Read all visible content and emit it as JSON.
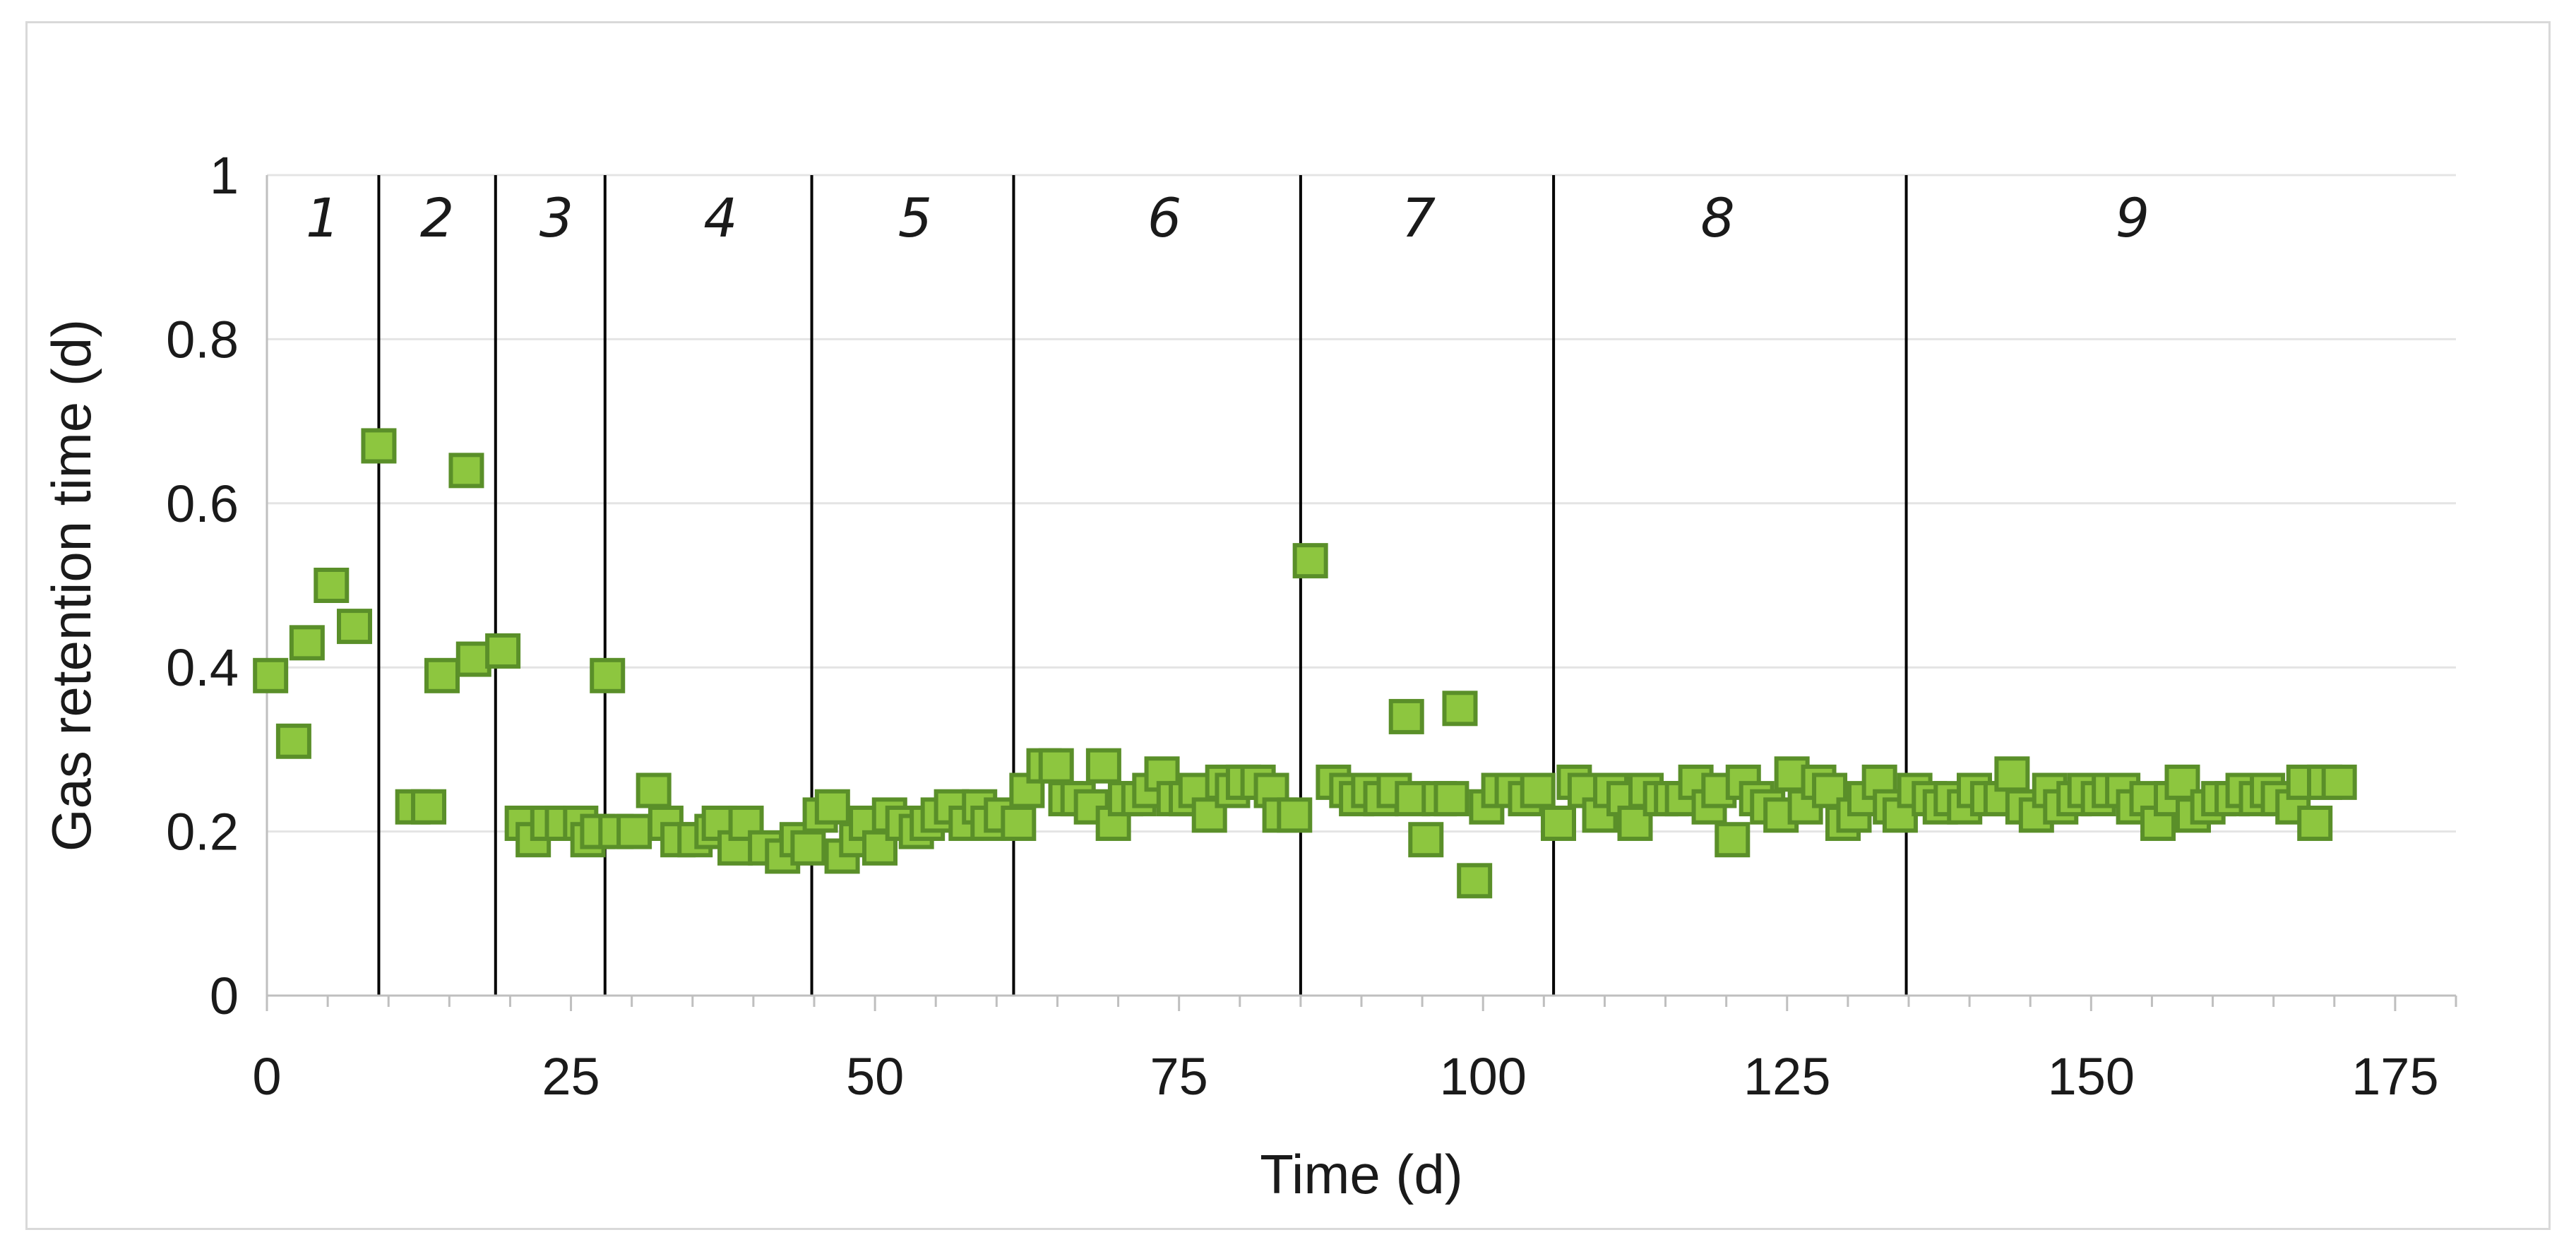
{
  "chart_data": {
    "type": "scatter",
    "title": "",
    "xlabel": "Time (d)",
    "ylabel": "Gas retention time (d)",
    "xlim": [
      0,
      180
    ],
    "ylim": [
      0,
      1
    ],
    "x_ticks": [
      "0",
      "25",
      "50",
      "75",
      "100",
      "125",
      "150",
      "175"
    ],
    "y_ticks": [
      "0",
      "0.2",
      "0.4",
      "0.6",
      "0.8",
      "1"
    ],
    "grid": "horizontal",
    "legend": "none",
    "marker": "square",
    "colors": {
      "marker_fill": "#8dc63f",
      "marker_edge": "#5a8f29",
      "grid": "#e4e4e4",
      "axis": "#bfbfbf",
      "divider": "#000000"
    },
    "phase_boundaries": [
      9.2,
      18.8,
      27.8,
      44.8,
      61.4,
      85.0,
      105.8,
      134.8
    ],
    "phases": [
      {
        "label": "1",
        "x": 4.6
      },
      {
        "label": "2",
        "x": 14.0
      },
      {
        "label": "3",
        "x": 23.8
      },
      {
        "label": "4",
        "x": 37.3
      },
      {
        "label": "5",
        "x": 53.3
      },
      {
        "label": "6",
        "x": 73.8
      },
      {
        "label": "7",
        "x": 94.7
      },
      {
        "label": "8",
        "x": 119.3
      },
      {
        "label": "9",
        "x": 153.4
      }
    ],
    "series": [
      {
        "x": [
          0.3,
          2.2,
          3.3,
          5.3,
          7.2,
          9.2,
          12.0,
          13.3,
          14.4,
          16.4,
          17.0,
          19.4,
          21.0,
          21.9,
          23.1,
          24.3,
          25.8,
          26.4,
          27.2,
          28.0,
          28.7,
          30.2,
          31.8,
          32.8,
          33.8,
          35.2,
          36.6,
          37.2,
          38.5,
          39.4,
          41.0,
          42.4,
          43.6,
          44.5,
          45.5,
          46.5,
          47.3,
          48.5,
          49.3,
          50.4,
          51.2,
          52.3,
          53.4,
          54.3,
          55.2,
          56.3,
          57.5,
          58.6,
          59.3,
          60.4,
          61.8,
          62.5,
          63.9,
          64.9,
          65.7,
          66.7,
          67.8,
          68.8,
          69.6,
          70.6,
          71.7,
          72.6,
          73.6,
          74.6,
          75.6,
          76.4,
          77.5,
          78.6,
          79.4,
          80.3,
          81.5,
          82.6,
          83.3,
          84.5,
          85.8,
          87.7,
          88.8,
          89.6,
          90.6,
          91.6,
          92.7,
          93.7,
          94.2,
          95.3,
          96.4,
          97.4,
          98.1,
          99.3,
          100.3,
          101.3,
          102.4,
          103.5,
          104.5,
          106.2,
          107.5,
          108.4,
          109.6,
          110.5,
          111.6,
          112.5,
          113.4,
          114.6,
          115.5,
          116.4,
          117.5,
          118.6,
          119.4,
          120.5,
          121.4,
          122.5,
          123.4,
          124.5,
          125.4,
          126.5,
          127.6,
          128.5,
          129.6,
          130.5,
          131.4,
          132.6,
          133.5,
          134.3,
          135.5,
          136.7,
          137.6,
          138.5,
          139.6,
          140.4,
          141.5,
          142.6,
          143.5,
          144.4,
          145.5,
          146.6,
          147.5,
          148.6,
          149.5,
          150.6,
          151.5,
          152.6,
          153.5,
          154.6,
          155.5,
          156.6,
          157.5,
          158.4,
          159.6,
          160.5,
          161.6,
          162.5,
          163.6,
          164.5,
          165.4,
          166.6,
          167.5,
          168.4,
          169.2,
          170.4
        ],
        "y": [
          0.39,
          0.31,
          0.43,
          0.5,
          0.45,
          0.67,
          0.23,
          0.23,
          0.39,
          0.64,
          0.41,
          0.42,
          0.21,
          0.19,
          0.21,
          0.21,
          0.21,
          0.19,
          0.2,
          0.39,
          0.2,
          0.2,
          0.25,
          0.21,
          0.19,
          0.19,
          0.2,
          0.21,
          0.18,
          0.21,
          0.18,
          0.17,
          0.19,
          0.18,
          0.22,
          0.23,
          0.17,
          0.19,
          0.21,
          0.18,
          0.22,
          0.21,
          0.2,
          0.21,
          0.22,
          0.23,
          0.21,
          0.23,
          0.21,
          0.22,
          0.21,
          0.25,
          0.28,
          0.28,
          0.24,
          0.24,
          0.23,
          0.28,
          0.21,
          0.24,
          0.24,
          0.25,
          0.27,
          0.24,
          0.24,
          0.25,
          0.22,
          0.26,
          0.25,
          0.26,
          0.26,
          0.25,
          0.22,
          0.22,
          0.53,
          0.26,
          0.25,
          0.24,
          0.25,
          0.24,
          0.25,
          0.34,
          0.24,
          0.19,
          0.24,
          0.24,
          0.35,
          0.14,
          0.23,
          0.25,
          0.25,
          0.24,
          0.25,
          0.21,
          0.26,
          0.25,
          0.22,
          0.25,
          0.24,
          0.21,
          0.25,
          0.24,
          0.24,
          0.24,
          0.26,
          0.23,
          0.25,
          0.19,
          0.26,
          0.24,
          0.23,
          0.22,
          0.27,
          0.23,
          0.26,
          0.25,
          0.21,
          0.22,
          0.24,
          0.26,
          0.23,
          0.22,
          0.25,
          0.24,
          0.23,
          0.24,
          0.23,
          0.25,
          0.24,
          0.24,
          0.27,
          0.23,
          0.22,
          0.25,
          0.23,
          0.24,
          0.25,
          0.24,
          0.25,
          0.25,
          0.23,
          0.24,
          0.21,
          0.24,
          0.26,
          0.22,
          0.23,
          0.24,
          0.24,
          0.25,
          0.24,
          0.25,
          0.24,
          0.23,
          0.26,
          0.21,
          0.26,
          0.26
        ]
      }
    ]
  }
}
